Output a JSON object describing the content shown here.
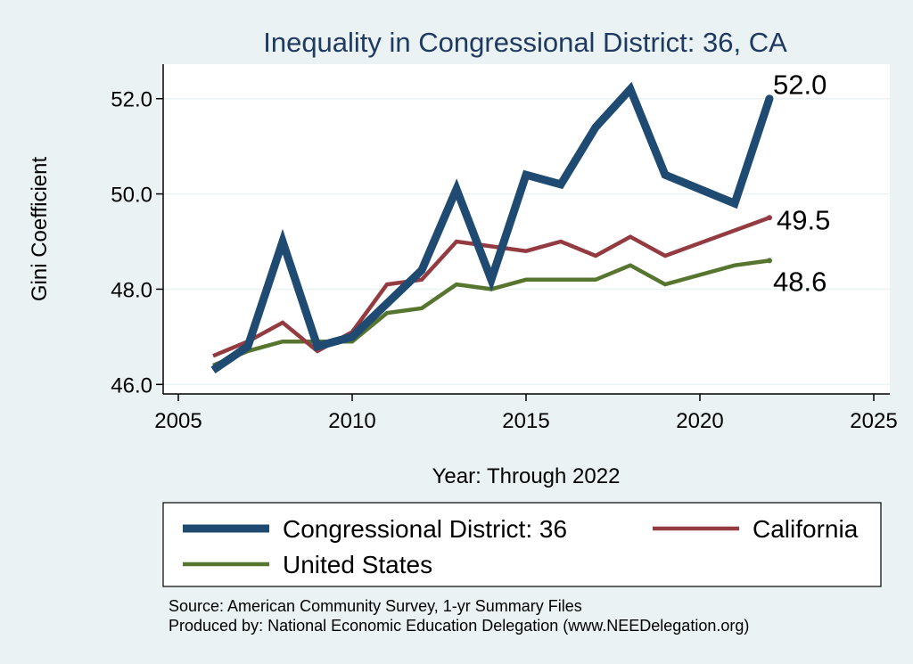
{
  "chart_data": {
    "type": "line",
    "title": "Inequality in Congressional District:  36, CA",
    "xlabel": "Year: Through 2022",
    "ylabel": "Gini Coefficient",
    "xlim": [
      2005,
      2025
    ],
    "ylim": [
      45.8,
      52.5
    ],
    "xticks": [
      "2005",
      "2010",
      "2015",
      "2020",
      "2025"
    ],
    "yticks": [
      "46.0",
      "48.0",
      "50.0",
      "52.0"
    ],
    "grid": true,
    "legend_position": "bottom",
    "series": [
      {
        "name": "Congressional District:  36",
        "color": "#1f4a72",
        "x": [
          2006,
          2007,
          2008,
          2009,
          2010,
          2011,
          2012,
          2013,
          2014,
          2015,
          2016,
          2017,
          2018,
          2019,
          2021,
          2022
        ],
        "values": [
          46.3,
          46.8,
          49.0,
          46.8,
          47.0,
          47.7,
          48.4,
          50.1,
          48.2,
          50.4,
          50.2,
          51.4,
          52.2,
          50.4,
          49.8,
          52.0
        ],
        "end_label": "52.0"
      },
      {
        "name": "California",
        "color": "#943b42",
        "x": [
          2006,
          2007,
          2008,
          2009,
          2010,
          2011,
          2012,
          2013,
          2014,
          2015,
          2016,
          2017,
          2018,
          2019,
          2022
        ],
        "values": [
          46.6,
          46.9,
          47.3,
          46.7,
          47.1,
          48.1,
          48.2,
          49.0,
          48.9,
          48.8,
          49.0,
          48.7,
          49.1,
          48.7,
          49.5
        ],
        "end_label": "49.5"
      },
      {
        "name": "United States",
        "color": "#56752e",
        "x": [
          2006,
          2007,
          2008,
          2009,
          2010,
          2011,
          2012,
          2013,
          2014,
          2015,
          2016,
          2017,
          2018,
          2019,
          2021,
          2022
        ],
        "values": [
          46.4,
          46.7,
          46.9,
          46.9,
          46.9,
          47.5,
          47.6,
          48.1,
          48.0,
          48.2,
          48.2,
          48.2,
          48.5,
          48.1,
          48.5,
          48.6
        ],
        "end_label": "48.6"
      }
    ],
    "notes": [
      "Source: American Community Survey, 1-yr Summary Files",
      "Produced by: National Economic Education Delegation (www.NEEDelegation.org)"
    ]
  }
}
